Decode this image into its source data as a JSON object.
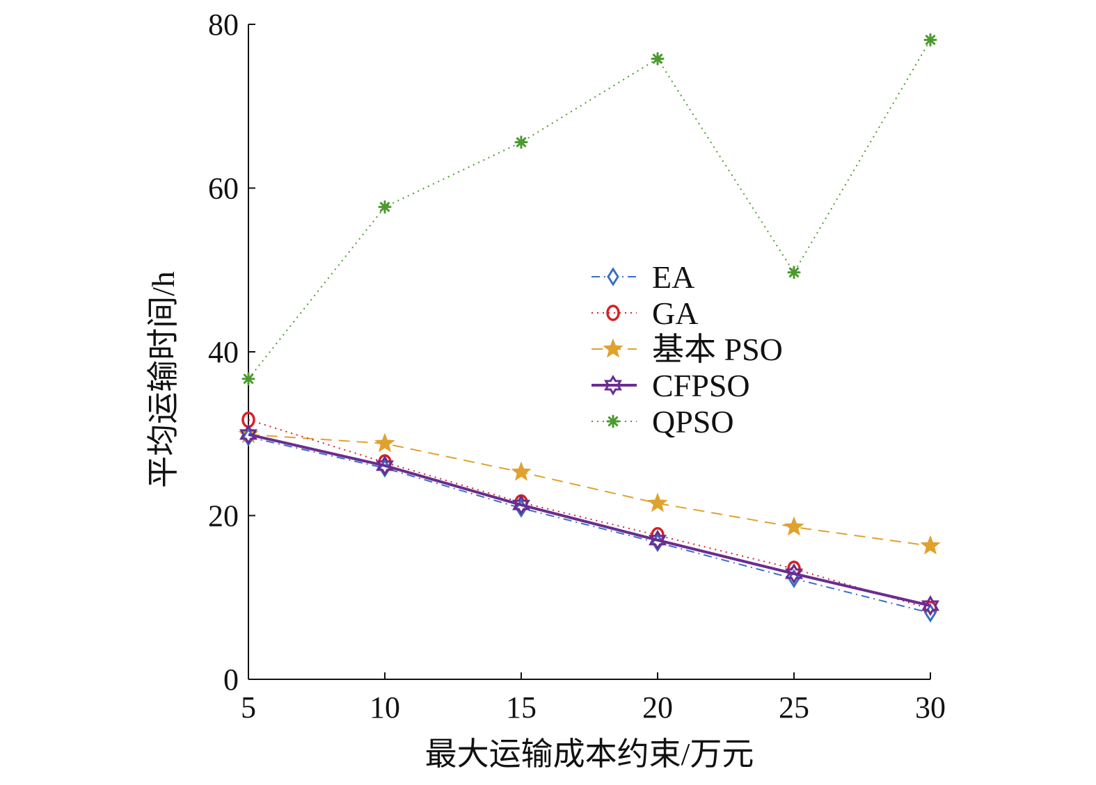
{
  "chart_data": {
    "type": "line",
    "title": "",
    "xlabel": "最大运输成本约束/万元",
    "ylabel": "平均运输时间/h",
    "x": [
      5,
      10,
      15,
      20,
      25,
      30
    ],
    "xlim": [
      5,
      30
    ],
    "ylim": [
      0,
      80
    ],
    "xticks": [
      "5",
      "10",
      "15",
      "20",
      "25",
      "30"
    ],
    "yticks": [
      "0",
      "20",
      "40",
      "60",
      "80"
    ],
    "grid": false,
    "legend_position": "center-right",
    "series": [
      {
        "name": "EA",
        "color": "#3a6fc4",
        "marker": "diamond",
        "line_style": "dash-dot",
        "values": [
          29.6,
          25.8,
          20.9,
          16.7,
          12.3,
          8.1
        ]
      },
      {
        "name": "GA",
        "color": "#d62027",
        "marker": "circle",
        "line_style": "dotted",
        "values": [
          31.7,
          26.5,
          21.6,
          17.6,
          13.5,
          8.6
        ]
      },
      {
        "name": "基本 PSO",
        "color": "#e0a12e",
        "marker": "star",
        "line_style": "dashed",
        "values": [
          29.9,
          28.8,
          25.3,
          21.5,
          18.6,
          16.3
        ]
      },
      {
        "name": "CFPSO",
        "color": "#6a2c91",
        "marker": "hexagram",
        "line_style": "solid",
        "values": [
          29.9,
          26.1,
          21.3,
          17.0,
          12.9,
          9.0
        ]
      },
      {
        "name": "QPSO",
        "color": "#4a9a2e",
        "marker": "asterisk",
        "line_style": "dotted",
        "values": [
          36.7,
          57.7,
          65.6,
          75.8,
          49.7,
          78.1
        ]
      }
    ]
  }
}
